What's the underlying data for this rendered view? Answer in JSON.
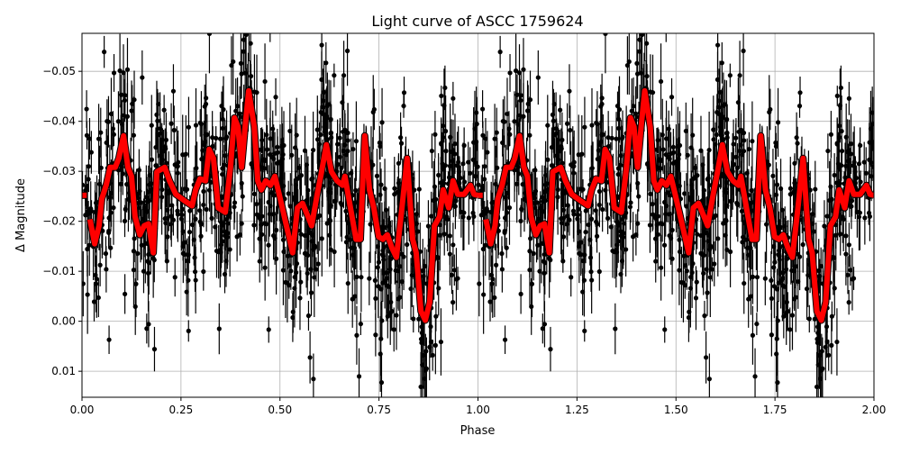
{
  "chart_data": {
    "type": "scatter",
    "title": "Light curve of ASCC 1759624",
    "xlabel": "Phase",
    "ylabel": "Δ Magnitude",
    "xlim": [
      0,
      2
    ],
    "ylim": [
      0.0152,
      -0.0576
    ],
    "y_inverted": true,
    "grid": true,
    "x_ticks": [
      0,
      0.25,
      0.5,
      0.75,
      1.0,
      1.25,
      1.5,
      1.75,
      2.0
    ],
    "x_tick_labels": [
      "0.00",
      "0.25",
      "0.50",
      "0.75",
      "1.00",
      "1.25",
      "1.50",
      "1.75",
      "2.00"
    ],
    "y_ticks": [
      -0.05,
      -0.04,
      -0.03,
      -0.02,
      -0.01,
      0.0,
      0.01
    ],
    "y_tick_labels": [
      "−0.05",
      "−0.04",
      "−0.03",
      "−0.02",
      "−0.01",
      "0.00",
      "0.01"
    ],
    "colors": {
      "points": "#000000",
      "binned": "#ff0000",
      "grid": "#b0b0b0"
    },
    "scatter": {
      "description_of_series": "observations with error bars, phase-folded and repeated for two cycles",
      "points_per_cycle": 900,
      "noise_sigma": 0.011,
      "error_range": [
        0.002,
        0.008
      ],
      "seed": 1759624
    },
    "binned_curve": {
      "stub": {
        "phase": [
          0.0,
          0.012
        ],
        "mag": [
          -0.0252,
          -0.0252
        ]
      },
      "phase": [
        0.02,
        0.032,
        0.043,
        0.05,
        0.061,
        0.071,
        0.084,
        0.093,
        0.105,
        0.116,
        0.125,
        0.134,
        0.146,
        0.157,
        0.168,
        0.18,
        0.189,
        0.209,
        0.221,
        0.237,
        0.259,
        0.278,
        0.287,
        0.298,
        0.312,
        0.321,
        0.332,
        0.344,
        0.362,
        0.375,
        0.385,
        0.394,
        0.403,
        0.412,
        0.421,
        0.435,
        0.444,
        0.453,
        0.464,
        0.476,
        0.487,
        0.498,
        0.532,
        0.544,
        0.557,
        0.571,
        0.58,
        0.594,
        0.605,
        0.617,
        0.63,
        0.644,
        0.658,
        0.664,
        0.678,
        0.692,
        0.703,
        0.714,
        0.726,
        0.737,
        0.749,
        0.76,
        0.771,
        0.783,
        0.794,
        0.808,
        0.821,
        0.835,
        0.844,
        0.856,
        0.867,
        0.878,
        0.89,
        0.903,
        0.912,
        0.926,
        0.937,
        0.949,
        0.965,
        0.981,
        0.99,
        1.0
      ],
      "mag": [
        -0.0204,
        -0.0155,
        -0.0191,
        -0.0245,
        -0.0272,
        -0.0308,
        -0.0308,
        -0.0326,
        -0.0371,
        -0.0308,
        -0.029,
        -0.0209,
        -0.0173,
        -0.0191,
        -0.0195,
        -0.0137,
        -0.0299,
        -0.0308,
        -0.0281,
        -0.0254,
        -0.0241,
        -0.0231,
        -0.0263,
        -0.0285,
        -0.0281,
        -0.0344,
        -0.0326,
        -0.0227,
        -0.0218,
        -0.0308,
        -0.0407,
        -0.0389,
        -0.0308,
        -0.0389,
        -0.0461,
        -0.0389,
        -0.0281,
        -0.0263,
        -0.0281,
        -0.0272,
        -0.029,
        -0.0254,
        -0.0137,
        -0.0227,
        -0.0236,
        -0.0209,
        -0.0191,
        -0.0254,
        -0.0299,
        -0.0353,
        -0.0299,
        -0.0281,
        -0.0272,
        -0.029,
        -0.0227,
        -0.0164,
        -0.0164,
        -0.0371,
        -0.0263,
        -0.0227,
        -0.0169,
        -0.0164,
        -0.0173,
        -0.0146,
        -0.0128,
        -0.0227,
        -0.0326,
        -0.0164,
        -0.0137,
        -0.002,
        -0.0002,
        -0.0038,
        -0.0191,
        -0.0209,
        -0.0263,
        -0.0227,
        -0.0281,
        -0.0254,
        -0.0254,
        -0.0272,
        -0.0254,
        -0.0252
      ]
    }
  }
}
